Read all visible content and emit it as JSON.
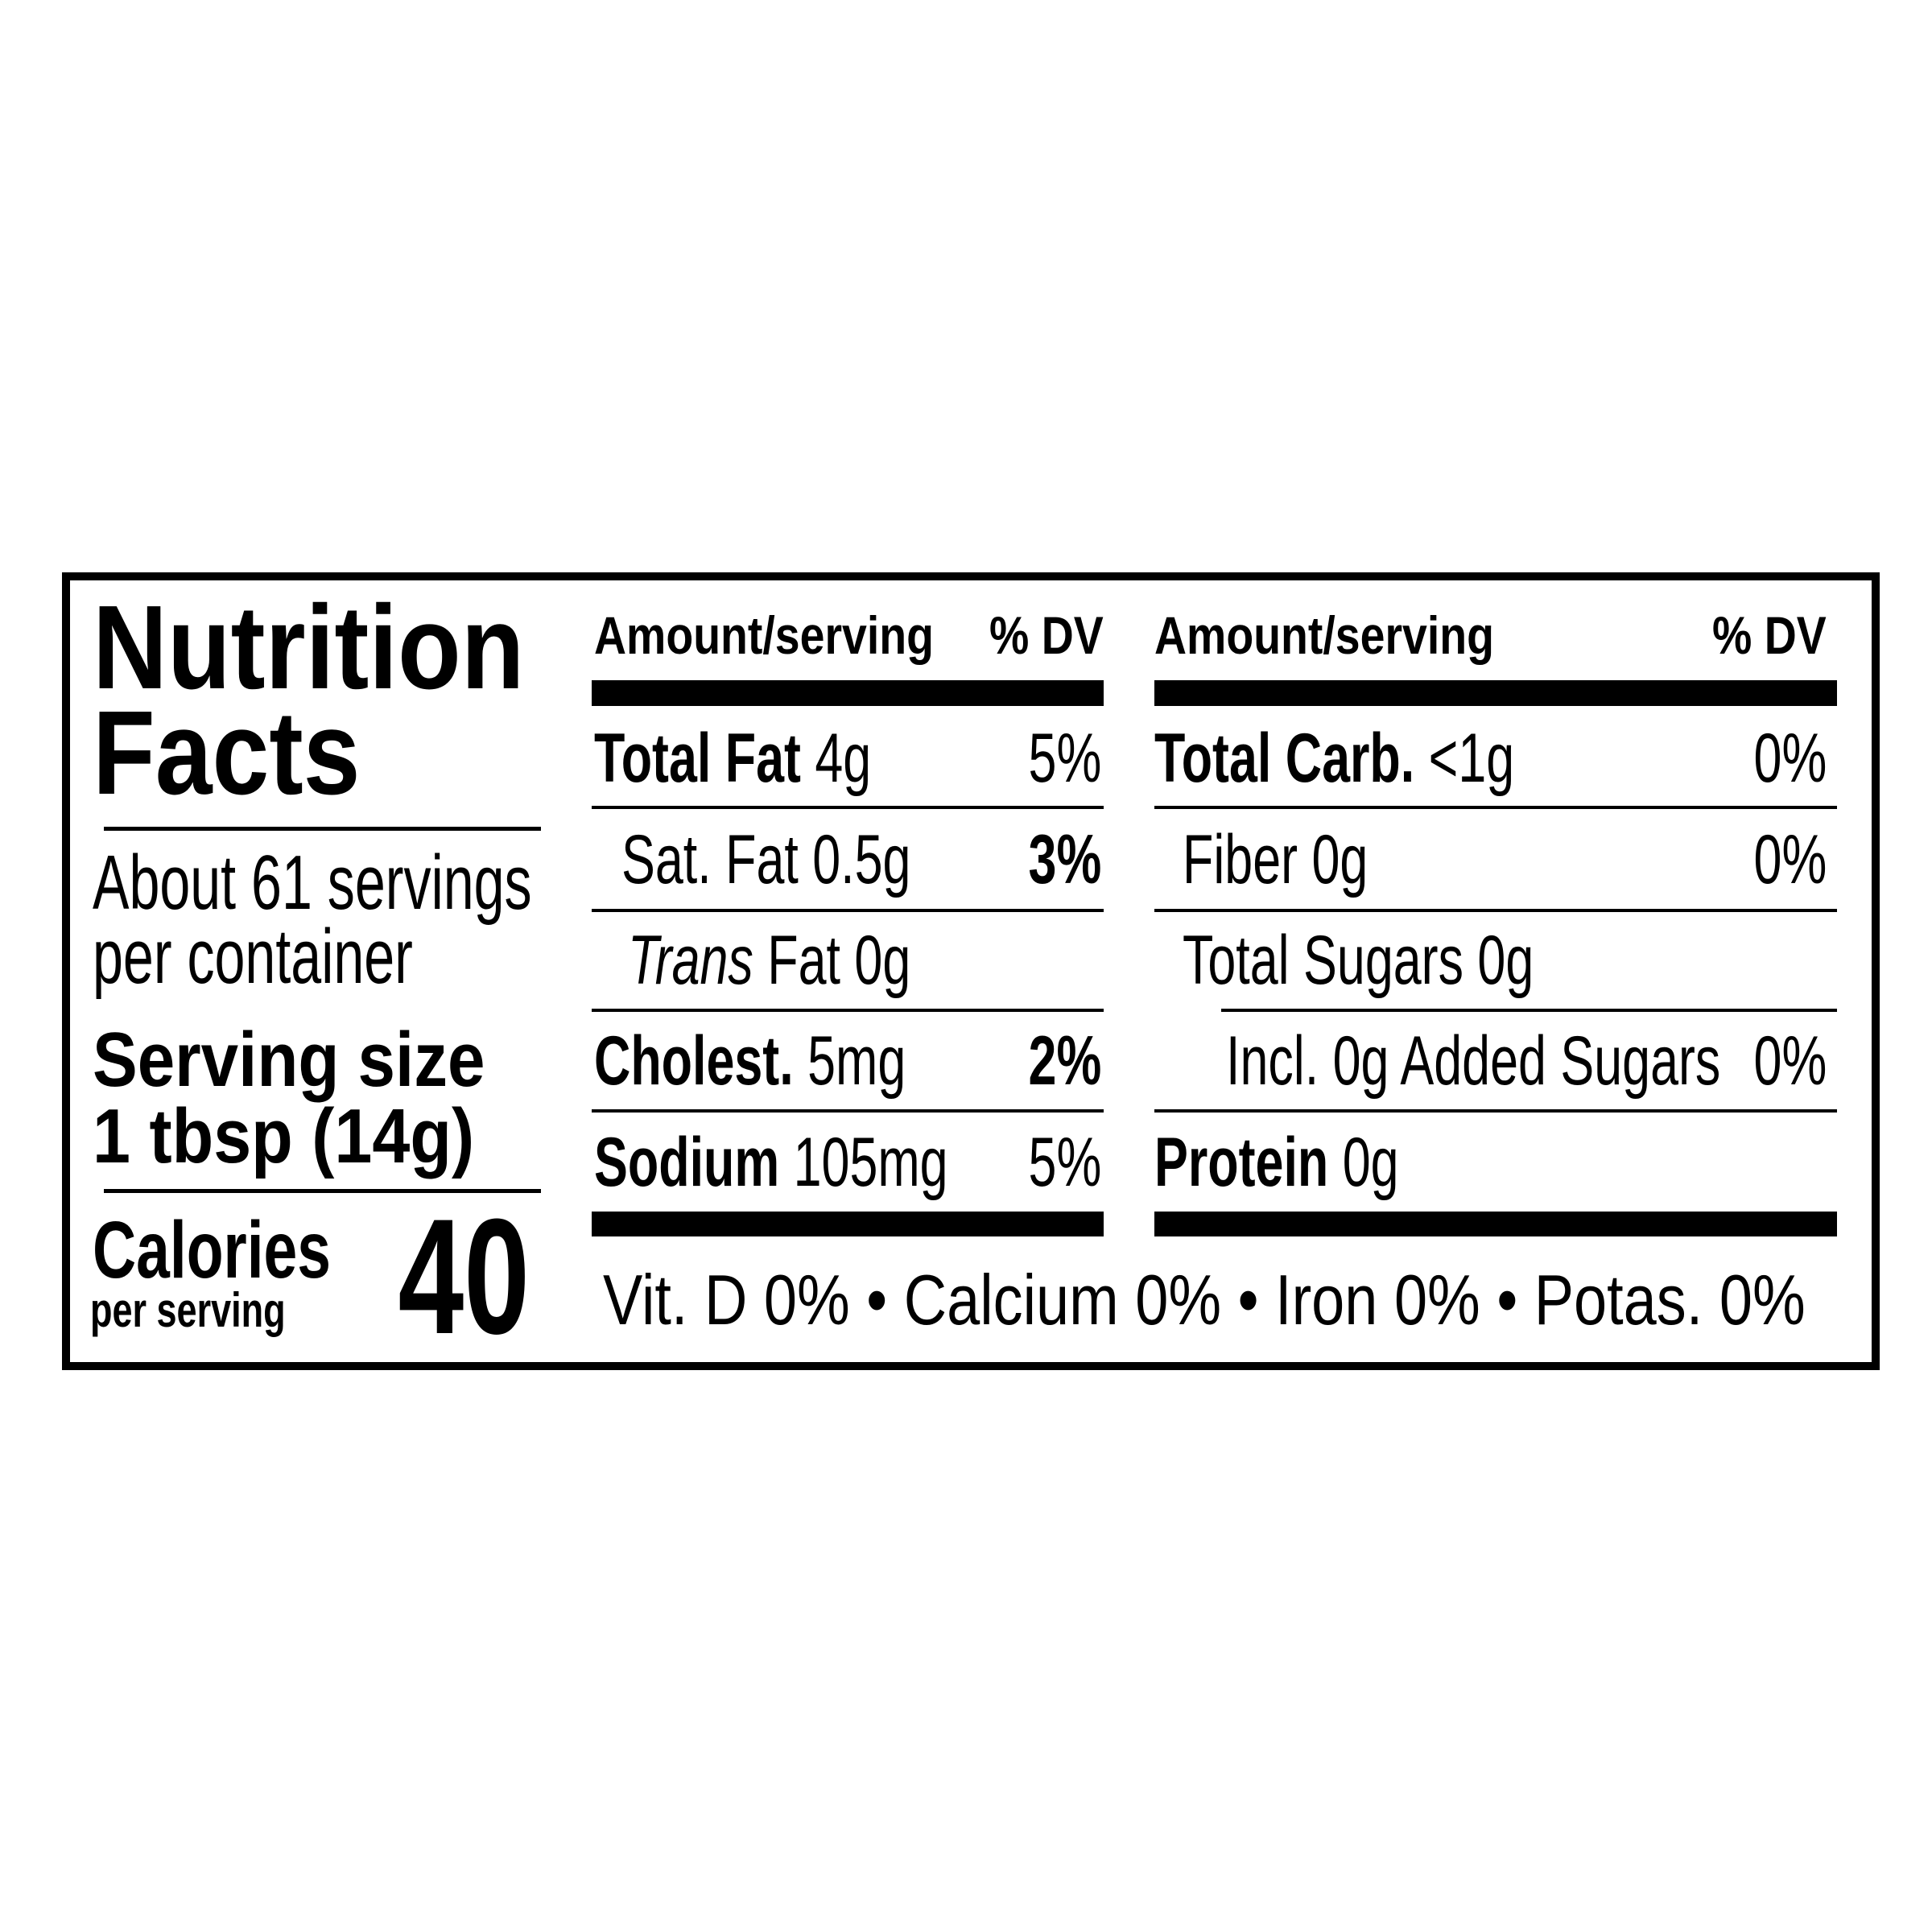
{
  "title_line1": "Nutrition",
  "title_line2": "Facts",
  "servings_line1": "About 61 servings",
  "servings_line2": "per container",
  "serving_size_label": "Serving size",
  "serving_size_value": "1 tbsp (14g)",
  "calories_label": "Calories",
  "calories_sub": "per serving",
  "calories_value": "40",
  "header": {
    "amount": "Amount/serving",
    "dv": "% DV"
  },
  "middle": {
    "total_fat": {
      "label": "Total Fat",
      "amount": "4g",
      "dv": "5%"
    },
    "sat_fat": {
      "label": "Sat. Fat 0.5g",
      "dv": "3%"
    },
    "trans_fat": {
      "label_italic": "Trans",
      "label_rest": "Fat 0g"
    },
    "cholesterol": {
      "label": "Cholest.",
      "amount": "5mg",
      "dv": "2%"
    },
    "sodium": {
      "label": "Sodium",
      "amount": "105mg",
      "dv": "5%"
    }
  },
  "right": {
    "total_carb": {
      "label": "Total Carb.",
      "amount": "<1g",
      "dv": "0%"
    },
    "fiber": {
      "label": "Fiber 0g",
      "dv": "0%"
    },
    "total_sugars": {
      "label": "Total Sugars 0g"
    },
    "added_sugars": {
      "label": "Incl. 0g Added Sugars",
      "dv": "0%"
    },
    "protein": {
      "label": "Protein",
      "amount": "0g"
    }
  },
  "vitamins": "Vit. D 0% • Calcium 0% • Iron 0% • Potas. 0%"
}
